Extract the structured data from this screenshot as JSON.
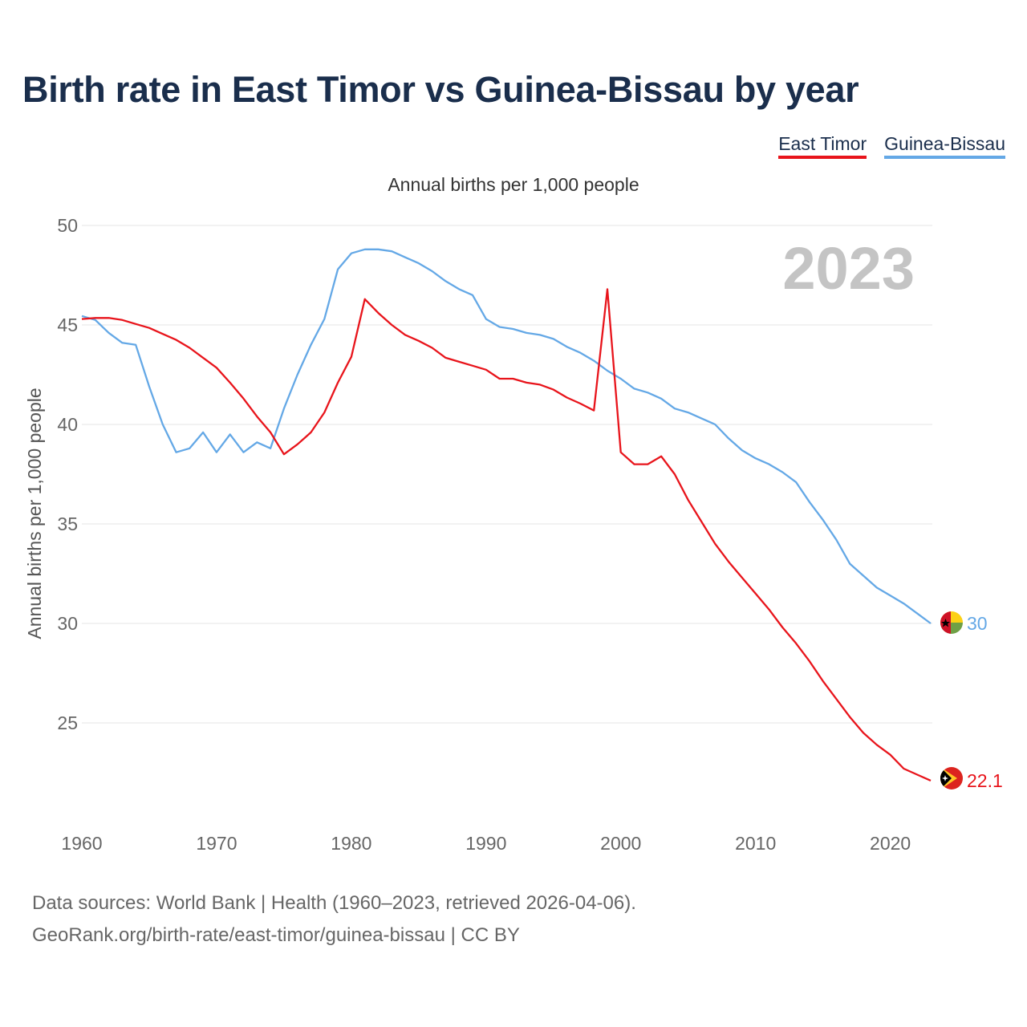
{
  "title": "Birth rate in East Timor vs Guinea-Bissau by year",
  "legend": [
    {
      "label": "East Timor",
      "color": "#e8141b"
    },
    {
      "label": "Guinea-Bissau",
      "color": "#64a8e6"
    }
  ],
  "year_watermark": "2023",
  "footer": {
    "line1": "Data sources: World Bank | Health (1960–2023, retrieved 2026-04-06).",
    "line2": "GeoRank.org/birth-rate/east-timor/guinea-bissau | CC BY"
  },
  "chart_data": {
    "type": "line",
    "title": "Birth rate in East Timor vs Guinea-Bissau by year",
    "subtitle": "Annual births per 1,000 people",
    "ylabel": "Annual births per 1,000 people",
    "xlabel": "",
    "xlim": [
      1960,
      2023
    ],
    "ylim": [
      20.5,
      50
    ],
    "yticks": [
      25,
      30,
      35,
      40,
      45,
      50
    ],
    "xticks": [
      1960,
      1970,
      1980,
      1990,
      2000,
      2010,
      2020
    ],
    "grid": true,
    "x": [
      1960,
      1961,
      1962,
      1963,
      1964,
      1965,
      1966,
      1967,
      1968,
      1969,
      1970,
      1971,
      1972,
      1973,
      1974,
      1975,
      1976,
      1977,
      1978,
      1979,
      1980,
      1981,
      1982,
      1983,
      1984,
      1985,
      1986,
      1987,
      1988,
      1989,
      1990,
      1991,
      1992,
      1993,
      1994,
      1995,
      1996,
      1997,
      1998,
      1999,
      2000,
      2001,
      2002,
      2003,
      2004,
      2005,
      2006,
      2007,
      2008,
      2009,
      2010,
      2011,
      2012,
      2013,
      2014,
      2015,
      2016,
      2017,
      2018,
      2019,
      2020,
      2021,
      2022,
      2023
    ],
    "series": [
      {
        "name": "East Timor",
        "color": "#e8141b",
        "end_label": "22.1",
        "values": [
          45.3,
          45.35,
          45.35,
          45.25,
          45.05,
          44.85,
          44.55,
          44.25,
          43.85,
          43.35,
          42.85,
          42.1,
          41.3,
          40.4,
          39.6,
          38.5,
          39.0,
          39.6,
          40.6,
          42.1,
          43.4,
          46.3,
          45.6,
          45.0,
          44.5,
          44.2,
          43.85,
          43.35,
          43.15,
          42.95,
          42.75,
          42.3,
          42.3,
          42.1,
          42.0,
          41.75,
          41.35,
          41.05,
          40.7,
          46.8,
          38.6,
          38.0,
          38.0,
          38.4,
          37.5,
          36.2,
          35.1,
          34.0,
          33.1,
          32.3,
          31.5,
          30.7,
          29.8,
          29.0,
          28.1,
          27.1,
          26.2,
          25.3,
          24.5,
          23.9,
          23.4,
          22.7,
          22.4,
          22.1
        ]
      },
      {
        "name": "Guinea-Bissau",
        "color": "#64a8e6",
        "end_label": "30",
        "values": [
          45.45,
          45.25,
          44.6,
          44.1,
          44.0,
          41.9,
          40.0,
          38.6,
          38.8,
          39.6,
          38.6,
          39.5,
          38.6,
          39.1,
          38.8,
          40.8,
          42.5,
          44.0,
          45.3,
          47.8,
          48.6,
          48.8,
          48.8,
          48.7,
          48.4,
          48.1,
          47.7,
          47.2,
          46.8,
          46.5,
          45.3,
          44.9,
          44.8,
          44.6,
          44.5,
          44.3,
          43.9,
          43.6,
          43.2,
          42.7,
          42.3,
          41.8,
          41.6,
          41.3,
          40.8,
          40.6,
          40.3,
          40.0,
          39.3,
          38.7,
          38.3,
          38.0,
          37.6,
          37.1,
          36.1,
          35.2,
          34.2,
          33.0,
          32.4,
          31.8,
          31.4,
          31.0,
          30.5,
          30.0
        ]
      }
    ]
  }
}
